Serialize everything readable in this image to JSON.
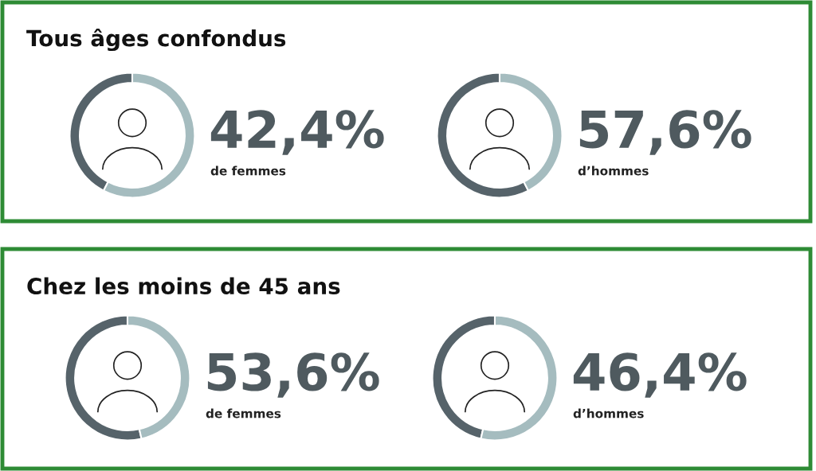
{
  "chart_data": [
    {
      "type": "donut",
      "title": "Tous âges confondus",
      "categories": [
        null,
        null
      ],
      "annotations": [
        "42,4%",
        "de femmes"
      ],
      "values": [
        42.4,
        57.6
      ],
      "colors": [
        "#56636a",
        "#a5bcbf"
      ]
    },
    {
      "type": "donut",
      "categories": [
        null,
        null
      ],
      "annotations": [
        "57,6%",
        "d’hommes"
      ],
      "values": [
        57.6,
        42.4
      ],
      "colors": [
        "#56636a",
        "#a5bcbf"
      ]
    },
    {
      "type": "donut",
      "title": "Chez les moins de 45 ans",
      "categories": [
        null,
        null
      ],
      "annotations": [
        "53,6%",
        "de femmes"
      ],
      "values": [
        53.6,
        46.4
      ],
      "colors": [
        "#56636a",
        "#a5bcbf"
      ]
    },
    {
      "type": "donut",
      "categories": [
        null,
        null
      ],
      "annotations": [
        "46,4%",
        "d’hommes"
      ],
      "values": [
        46.4,
        53.6
      ],
      "colors": [
        "#56636a",
        "#a5bcbf"
      ]
    }
  ]
}
